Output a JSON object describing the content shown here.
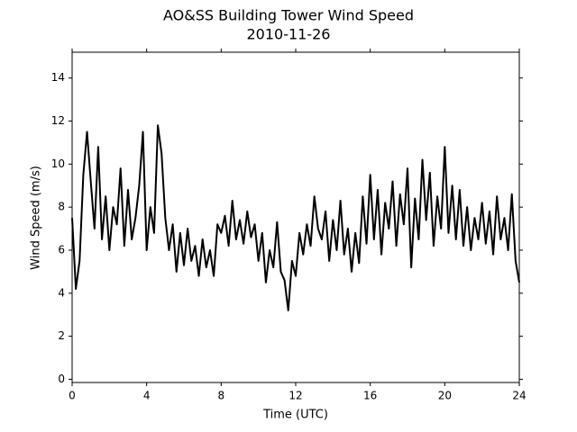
{
  "chart_data": {
    "type": "line",
    "title": "AO&SS Building Tower Wind Speed",
    "subtitle": "2010-11-26",
    "x_label": "Time (UTC)",
    "y_label": "Wind Speed (m/s)",
    "xlim": [
      0,
      24
    ],
    "xticks": [
      0,
      4,
      8,
      12,
      16,
      20,
      24
    ],
    "ylim": [
      -0.15,
      15.2
    ],
    "yticks": [
      0,
      2,
      4,
      6,
      8,
      10,
      12,
      14
    ],
    "grid": false,
    "x": [
      0,
      0.2,
      0.4,
      0.6,
      0.8,
      1,
      1.2,
      1.4,
      1.6,
      1.8,
      2,
      2.2,
      2.4,
      2.6,
      2.8,
      3,
      3.2,
      3.4,
      3.6,
      3.8,
      4,
      4.2,
      4.4,
      4.6,
      4.8,
      5,
      5.2,
      5.4,
      5.6,
      5.8,
      6,
      6.2,
      6.4,
      6.6,
      6.8,
      7,
      7.2,
      7.4,
      7.6,
      7.8,
      8,
      8.2,
      8.4,
      8.6,
      8.8,
      9,
      9.2,
      9.4,
      9.6,
      9.8,
      10,
      10.2,
      10.4,
      10.6,
      10.8,
      11,
      11.2,
      11.4,
      11.6,
      11.8,
      12,
      12.2,
      12.4,
      12.6,
      12.8,
      13,
      13.2,
      13.4,
      13.6,
      13.8,
      14,
      14.2,
      14.4,
      14.6,
      14.8,
      15,
      15.2,
      15.4,
      15.6,
      15.8,
      16,
      16.2,
      16.4,
      16.6,
      16.8,
      17,
      17.2,
      17.4,
      17.6,
      17.8,
      18,
      18.2,
      18.4,
      18.6,
      18.8,
      19,
      19.2,
      19.4,
      19.6,
      19.8,
      20,
      20.2,
      20.4,
      20.6,
      20.8,
      21,
      21.2,
      21.4,
      21.6,
      21.8,
      22,
      22.2,
      22.4,
      22.6,
      22.8,
      23,
      23.2,
      23.4,
      23.6,
      23.8,
      24
    ],
    "series": [
      {
        "color": "#000000",
        "values": [
          7.5,
          4.2,
          5.5,
          9.5,
          11.5,
          9.2,
          7,
          10.8,
          6.5,
          8.5,
          6,
          8,
          7.2,
          9.8,
          6.2,
          8.8,
          6.5,
          7.5,
          9,
          11.5,
          6,
          8,
          6.8,
          11.8,
          10.5,
          7.5,
          6,
          7.2,
          5,
          6.8,
          5.3,
          7,
          5.5,
          6.2,
          4.8,
          6.5,
          5.2,
          6,
          4.8,
          7.2,
          6.8,
          7.6,
          6.2,
          8.3,
          6.5,
          7.4,
          6.3,
          7.8,
          6.6,
          7.2,
          5.5,
          6.8,
          4.5,
          6,
          5.2,
          7.3,
          5,
          4.6,
          3.2,
          5.5,
          4.8,
          6.8,
          5.8,
          7.2,
          6.2,
          8.5,
          7,
          6.5,
          7.8,
          5.5,
          7.4,
          6,
          8.3,
          5.8,
          7,
          5,
          6.8,
          5.4,
          8.5,
          6.3,
          9.5,
          6.5,
          8.8,
          5.8,
          8.2,
          7,
          9.2,
          6.2,
          8.6,
          7.2,
          9.8,
          5.2,
          8.4,
          6.5,
          10.2,
          7.4,
          9.6,
          6.2,
          8.5,
          7,
          10.8,
          6.8,
          9,
          6.5,
          8.8,
          6.2,
          8,
          6,
          7.5,
          6.5,
          8.2,
          6.3,
          7.8,
          5.8,
          8.5,
          6.5,
          7.5,
          6,
          8.6,
          5.5,
          4.5
        ]
      }
    ]
  }
}
